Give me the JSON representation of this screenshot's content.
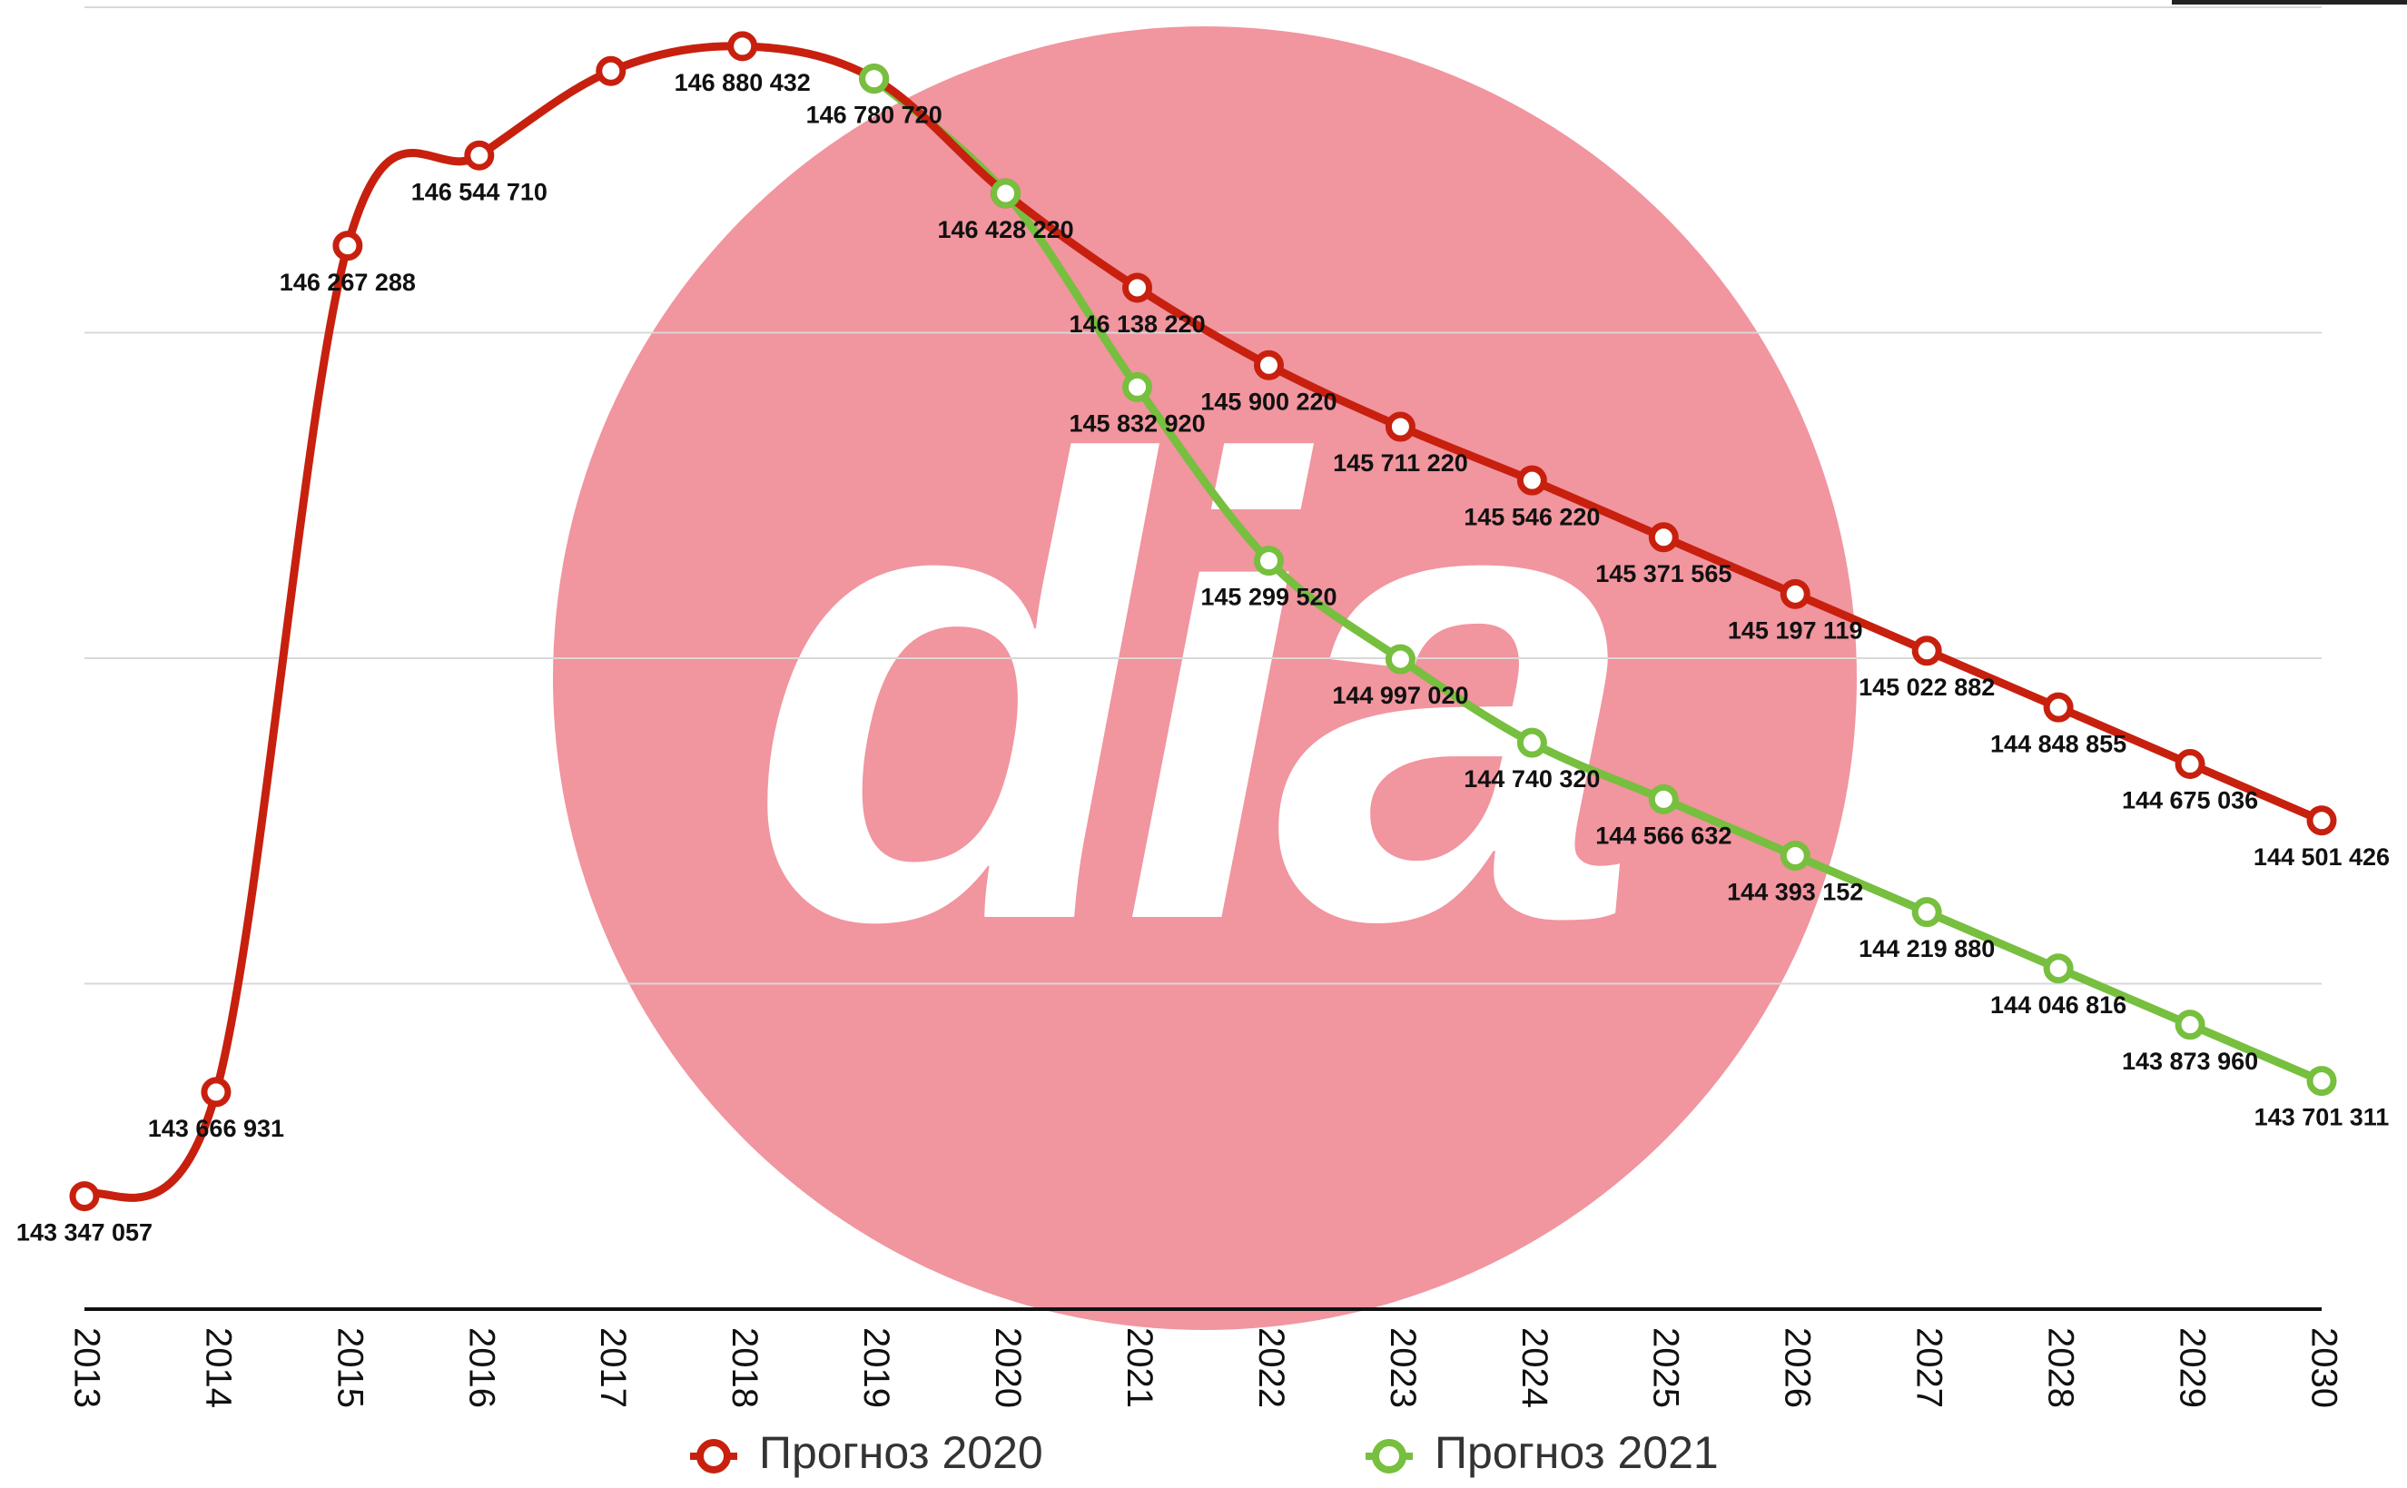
{
  "chart_data": {
    "type": "line",
    "watermark": "dia",
    "x": [
      2013,
      2014,
      2015,
      2016,
      2017,
      2018,
      2019,
      2020,
      2021,
      2022,
      2023,
      2024,
      2025,
      2026,
      2027,
      2028,
      2029,
      2030
    ],
    "series": [
      {
        "name": "Прогноз 2020",
        "color": "#c8200e",
        "values": [
          143347057,
          143666931,
          146267288,
          146544710,
          146804000,
          146880432,
          146780720,
          146428220,
          146138220,
          145900220,
          145711220,
          145546220,
          145371565,
          145197119,
          145022882,
          144848855,
          144675036,
          144501426
        ],
        "value_labels": [
          "143 347 057",
          "143 666 931",
          "146 267 288",
          "146 544 710",
          null,
          "146 880 432",
          "146 780 720",
          "146 428 220",
          "146 138 220",
          "145 900 220",
          "145 711 220",
          "145 546 220",
          "145 371 565",
          "145 197 119",
          "145 022 882",
          "144 848 855",
          "144 675 036",
          "144 501 426"
        ]
      },
      {
        "name": "Прогноз 2021",
        "color": "#77bf3e",
        "values": [
          null,
          null,
          null,
          null,
          null,
          null,
          146780720,
          146428220,
          145832920,
          145299520,
          144997020,
          144740320,
          144566632,
          144393152,
          144219880,
          144046816,
          143873960,
          143701311
        ],
        "value_labels": [
          null,
          null,
          null,
          null,
          null,
          null,
          null,
          null,
          "145 832 920",
          "145 299 520",
          "144 997 020",
          "144 740 320",
          "144 566 632",
          "144 393 152",
          "144 219 880",
          "144 046 816",
          "143 873 960",
          "143 701 311"
        ]
      }
    ],
    "xlim": [
      2013,
      2030
    ],
    "ylim": [
      143000000,
      147000000
    ],
    "yticks": [
      143000000,
      144000000,
      145000000,
      146000000,
      147000000
    ],
    "grid": true,
    "legend": "bottom"
  }
}
